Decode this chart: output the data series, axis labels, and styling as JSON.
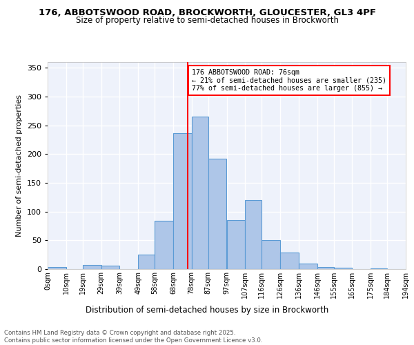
{
  "title1": "176, ABBOTSWOOD ROAD, BROCKWORTH, GLOUCESTER, GL3 4PF",
  "title2": "Size of property relative to semi-detached houses in Brockworth",
  "xlabel": "Distribution of semi-detached houses by size in Brockworth",
  "ylabel": "Number of semi-detached properties",
  "bin_labels": [
    "0sqm",
    "10sqm",
    "19sqm",
    "29sqm",
    "39sqm",
    "49sqm",
    "58sqm",
    "68sqm",
    "78sqm",
    "87sqm",
    "97sqm",
    "107sqm",
    "116sqm",
    "126sqm",
    "136sqm",
    "146sqm",
    "155sqm",
    "165sqm",
    "175sqm",
    "184sqm",
    "194sqm"
  ],
  "bar_heights": [
    4,
    0,
    7,
    6,
    0,
    25,
    84,
    236,
    265,
    192,
    85,
    120,
    51,
    29,
    10,
    4,
    3,
    0,
    1,
    0
  ],
  "bar_color": "#aec6e8",
  "bar_edge_color": "#5b9bd5",
  "vline_x": 76,
  "vline_color": "red",
  "annotation_text": "176 ABBOTSWOOD ROAD: 76sqm\n← 21% of semi-detached houses are smaller (235)\n77% of semi-detached houses are larger (855) →",
  "ylim": [
    0,
    360
  ],
  "yticks": [
    0,
    50,
    100,
    150,
    200,
    250,
    300,
    350
  ],
  "background_color": "#eef2fb",
  "grid_color": "white",
  "footnote": "Contains HM Land Registry data © Crown copyright and database right 2025.\nContains public sector information licensed under the Open Government Licence v3.0.",
  "bin_edges": [
    0,
    10,
    19,
    29,
    39,
    49,
    58,
    68,
    78,
    87,
    97,
    107,
    116,
    126,
    136,
    146,
    155,
    165,
    175,
    184,
    194
  ]
}
